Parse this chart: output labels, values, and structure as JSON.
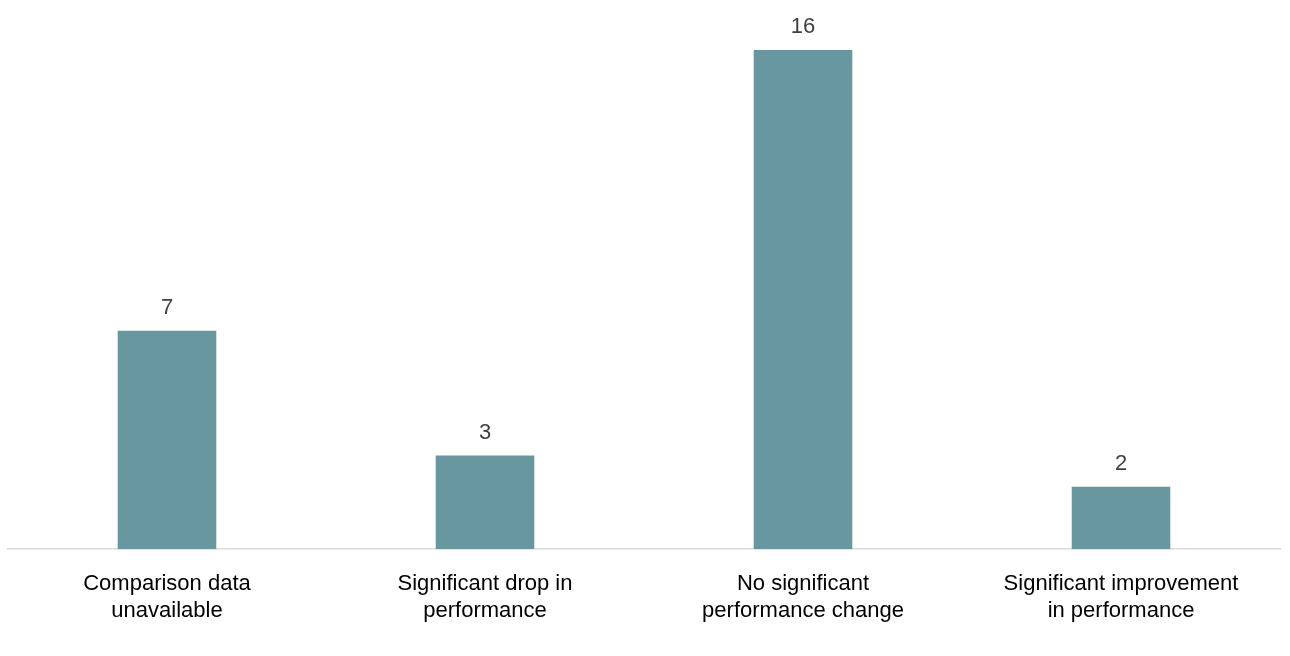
{
  "chart_data": {
    "type": "bar",
    "categories": [
      "Comparison data unavailable",
      "Significant drop in performance",
      "No significant performance change",
      "Significant improvement in performance"
    ],
    "values": [
      7,
      3,
      16,
      2
    ],
    "color": "#6897a0",
    "data_labels": true
  }
}
